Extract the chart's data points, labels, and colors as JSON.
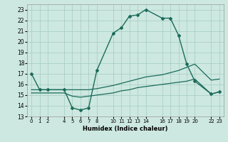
{
  "xlabel": "Humidex (Indice chaleur)",
  "bg_color": "#cde8e0",
  "grid_color": "#aacfc7",
  "line_color": "#1a6b5a",
  "ylim": [
    13,
    23.5
  ],
  "xlim": [
    -0.5,
    23.5
  ],
  "yticks": [
    13,
    14,
    15,
    16,
    17,
    18,
    19,
    20,
    21,
    22,
    23
  ],
  "xticks": [
    0,
    1,
    2,
    4,
    5,
    6,
    7,
    8,
    10,
    11,
    12,
    13,
    14,
    16,
    17,
    18,
    19,
    20,
    22,
    23
  ],
  "line1_x": [
    0,
    1,
    2,
    4,
    5,
    6,
    7,
    8,
    10,
    11,
    12,
    13,
    14,
    16,
    17,
    18,
    19,
    20,
    22,
    23
  ],
  "line1_y": [
    17.0,
    15.5,
    15.5,
    15.5,
    13.8,
    13.6,
    13.8,
    17.3,
    20.8,
    21.3,
    22.4,
    22.5,
    23.0,
    22.2,
    22.2,
    20.6,
    17.9,
    16.3,
    15.1,
    15.3
  ],
  "line2_x": [
    0,
    1,
    2,
    4,
    5,
    6,
    7,
    8,
    10,
    11,
    12,
    13,
    14,
    16,
    17,
    18,
    19,
    20,
    22,
    23
  ],
  "line2_y": [
    15.5,
    15.5,
    15.5,
    15.5,
    15.5,
    15.5,
    15.5,
    15.6,
    15.9,
    16.1,
    16.3,
    16.5,
    16.7,
    16.9,
    17.1,
    17.3,
    17.6,
    17.9,
    16.4,
    16.5
  ],
  "line3_x": [
    0,
    1,
    2,
    4,
    5,
    6,
    7,
    8,
    10,
    11,
    12,
    13,
    14,
    16,
    17,
    18,
    19,
    20,
    22,
    23
  ],
  "line3_y": [
    15.2,
    15.2,
    15.2,
    15.2,
    14.9,
    14.8,
    14.9,
    15.0,
    15.2,
    15.4,
    15.5,
    15.7,
    15.8,
    16.0,
    16.1,
    16.2,
    16.3,
    16.5,
    15.1,
    15.3
  ]
}
